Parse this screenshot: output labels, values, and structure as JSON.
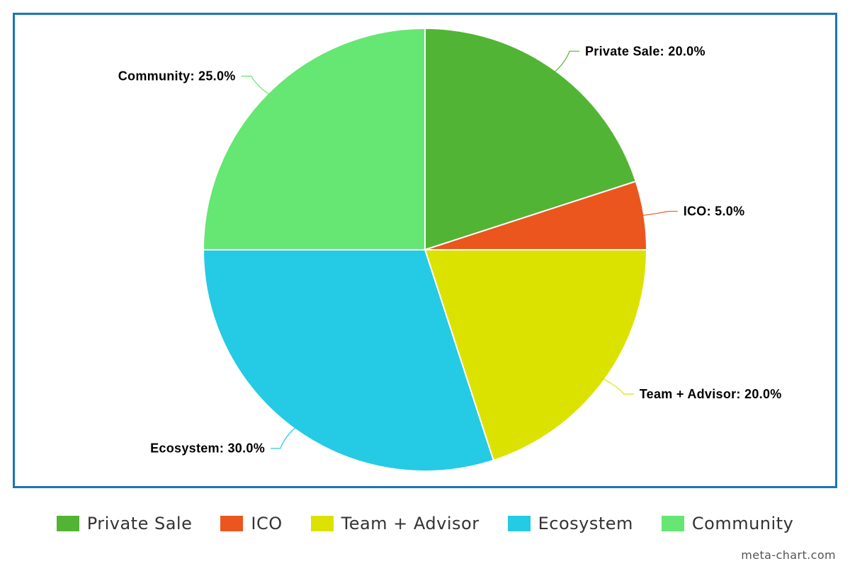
{
  "chart_data": {
    "type": "pie",
    "title": "",
    "slices": [
      {
        "name": "Private Sale",
        "value": 20.0,
        "label": "Private Sale: 20.0%",
        "color": "#52b435"
      },
      {
        "name": "ICO",
        "value": 5.0,
        "label": "ICO: 5.0%",
        "color": "#eb561e"
      },
      {
        "name": "Team + Advisor",
        "value": 20.0,
        "label": "Team + Advisor: 20.0%",
        "color": "#dce200"
      },
      {
        "name": "Ecosystem",
        "value": 30.0,
        "label": "Ecosystem: 30.0%",
        "color": "#25cae4"
      },
      {
        "name": "Community",
        "value": 25.0,
        "label": "Community: 25.0%",
        "color": "#66e673"
      }
    ],
    "start_angle": "12 o'clock",
    "direction": "clockwise",
    "legend_position": "bottom"
  },
  "frame_color": "#1a75bb",
  "watermark": "meta-chart.com"
}
